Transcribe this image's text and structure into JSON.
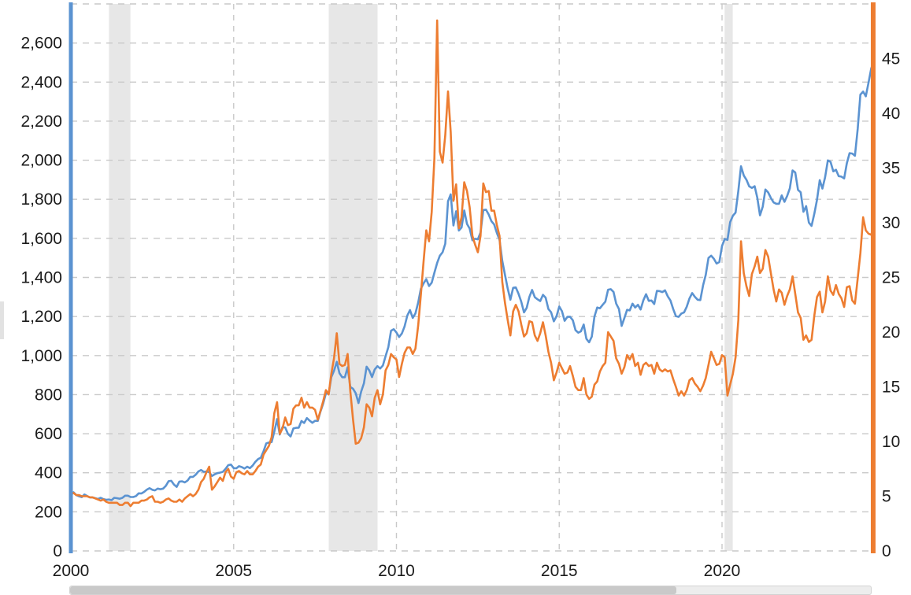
{
  "chart_data": {
    "type": "line",
    "title": "",
    "grid": {
      "on": true,
      "dashed": true,
      "color": "#c9c9c9",
      "left_axis_grid_step": 200
    },
    "legend": "none",
    "x_axis": {
      "min": 2000,
      "max": 2024.75,
      "tick_values": [
        2000,
        2005,
        2010,
        2015,
        2020
      ],
      "tick_labels": [
        "2000",
        "2005",
        "2010",
        "2015",
        "2020"
      ]
    },
    "left_axis": {
      "min": 0,
      "max": 2800,
      "color": "#5b93d1",
      "tick_values": [
        0,
        200,
        400,
        600,
        800,
        1000,
        1200,
        1400,
        1600,
        1800,
        2000,
        2200,
        2400,
        2600
      ],
      "tick_labels": [
        "0",
        "200",
        "400",
        "600",
        "800",
        "1,000",
        "1,200",
        "1,400",
        "1,600",
        "1,800",
        "2,000",
        "2,200",
        "2,400",
        "2,600"
      ]
    },
    "right_axis": {
      "min": 0,
      "max": 50,
      "color": "#ed7d31",
      "tick_values": [
        0,
        5,
        10,
        15,
        20,
        25,
        30,
        35,
        40,
        45
      ],
      "tick_labels": [
        "0",
        "5",
        "10",
        "15",
        "20",
        "25",
        "30",
        "35",
        "40",
        "45"
      ]
    },
    "recession_bands": [
      {
        "x_start": 2001.17,
        "x_end": 2001.83
      },
      {
        "x_start": 2007.92,
        "x_end": 2009.42
      },
      {
        "x_start": 2020.08,
        "x_end": 2020.33
      }
    ],
    "series": [
      {
        "name": "blue-series-left-axis",
        "axis": "left",
        "color": "#5b93d1",
        "start_year": 2000,
        "interval_months": 1,
        "values": [
          284,
          300,
          286,
          280,
          275,
          289,
          281,
          274,
          274,
          270,
          266,
          272,
          265,
          262,
          263,
          260,
          272,
          270,
          267,
          272,
          283,
          283,
          276,
          276,
          281,
          295,
          294,
          302,
          314,
          321,
          313,
          310,
          319,
          316,
          319,
          333,
          357,
          359,
          340,
          328,
          355,
          356,
          351,
          360,
          379,
          379,
          390,
          407,
          414,
          405,
          407,
          403,
          384,
          392,
          398,
          401,
          405,
          420,
          439,
          442,
          424,
          423,
          434,
          429,
          422,
          431,
          424,
          437,
          456,
          470,
          477,
          510,
          550,
          555,
          557,
          611,
          675,
          596,
          634,
          632,
          599,
          586,
          627,
          630,
          631,
          665,
          655,
          680,
          667,
          656,
          666,
          666,
          713,
          755,
          806,
          804,
          890,
          922,
          968,
          910,
          889,
          889,
          940,
          839,
          830,
          807,
          757,
          816,
          858,
          943,
          924,
          890,
          929,
          946,
          934,
          949,
          997,
          1043,
          1127,
          1135,
          1118,
          1095,
          1113,
          1149,
          1205,
          1233,
          1193,
          1216,
          1271,
          1342,
          1370,
          1391,
          1356,
          1373,
          1424,
          1474,
          1511,
          1529,
          1573,
          1790,
          1825,
          1666,
          1739,
          1640,
          1656,
          1743,
          1674,
          1650,
          1590,
          1598,
          1595,
          1630,
          1745,
          1747,
          1722,
          1688,
          1671,
          1628,
          1593,
          1485,
          1414,
          1343,
          1286,
          1347,
          1349,
          1316,
          1276,
          1221,
          1244,
          1300,
          1336,
          1299,
          1288,
          1279,
          1311,
          1296,
          1238,
          1222,
          1175,
          1201,
          1251,
          1227,
          1178,
          1198,
          1199,
          1181,
          1130,
          1117,
          1124,
          1159,
          1086,
          1068,
          1097,
          1200,
          1246,
          1242,
          1260,
          1276,
          1337,
          1340,
          1326,
          1266,
          1238,
          1152,
          1192,
          1234,
          1231,
          1266,
          1246,
          1260,
          1236,
          1283,
          1314,
          1280,
          1282,
          1264,
          1331,
          1330,
          1325,
          1334,
          1303,
          1282,
          1238,
          1202,
          1198,
          1215,
          1221,
          1250,
          1292,
          1320,
          1301,
          1286,
          1284,
          1359,
          1413,
          1500,
          1511,
          1495,
          1471,
          1479,
          1561,
          1597,
          1592,
          1683,
          1716,
          1732,
          1843,
          1969,
          1922,
          1900,
          1866,
          1858,
          1867,
          1808,
          1718,
          1762,
          1850,
          1835,
          1807,
          1784,
          1777,
          1777,
          1820,
          1787,
          1817,
          1856,
          1948,
          1937,
          1848,
          1836,
          1736,
          1765,
          1681,
          1664,
          1726,
          1797,
          1898,
          1855,
          1913,
          1999,
          1992,
          1943,
          1951,
          1918,
          1916,
          1907,
          1984,
          2036,
          2034,
          2023,
          2160,
          2336,
          2351,
          2327,
          2398,
          2470,
          2510
        ]
      },
      {
        "name": "orange-series-right-axis",
        "axis": "right",
        "color": "#ed7d31",
        "start_year": 2000,
        "interval_months": 1,
        "values": [
          5.2,
          5.3,
          5.1,
          5.1,
          5.0,
          5.0,
          5.0,
          4.9,
          4.9,
          4.8,
          4.7,
          4.6,
          4.7,
          4.5,
          4.4,
          4.4,
          4.4,
          4.4,
          4.2,
          4.2,
          4.4,
          4.4,
          4.1,
          4.4,
          4.4,
          4.4,
          4.6,
          4.6,
          4.7,
          4.9,
          5.0,
          4.5,
          4.5,
          4.4,
          4.5,
          4.7,
          4.8,
          4.6,
          4.5,
          4.5,
          4.7,
          4.5,
          4.8,
          5.0,
          5.2,
          5.0,
          5.2,
          5.6,
          6.3,
          6.6,
          7.2,
          7.7,
          5.6,
          5.9,
          6.3,
          6.7,
          6.4,
          7.2,
          7.5,
          6.8,
          6.6,
          7.2,
          7.3,
          7.1,
          7.0,
          7.3,
          7.0,
          7.0,
          7.3,
          7.7,
          7.9,
          8.8,
          9.2,
          9.6,
          10.4,
          12.6,
          13.6,
          10.7,
          11.2,
          12.2,
          11.5,
          11.6,
          13.0,
          13.3,
          13.3,
          14.0,
          13.1,
          13.6,
          13.1,
          13.1,
          12.9,
          12.0,
          12.8,
          13.7,
          14.7,
          14.3,
          16.2,
          17.6,
          19.9,
          17.1,
          16.9,
          17.0,
          18.0,
          14.6,
          12.0,
          9.8,
          9.9,
          10.3,
          11.3,
          13.4,
          13.1,
          12.3,
          14.0,
          14.7,
          13.4,
          14.3,
          16.5,
          17.0,
          18.0,
          17.7,
          17.5,
          15.9,
          17.1,
          18.1,
          18.6,
          18.6,
          18.0,
          18.5,
          20.6,
          23.4,
          26.5,
          29.3,
          28.3,
          31.0,
          35.9,
          48.5,
          36.5,
          35.5,
          38.0,
          42.0,
          38.3,
          32.0,
          33.5,
          29.5,
          30.5,
          33.7,
          32.9,
          31.4,
          28.8,
          28.0,
          27.3,
          28.8,
          33.6,
          32.8,
          32.9,
          31.1,
          31.1,
          29.8,
          28.8,
          24.6,
          22.7,
          21.1,
          19.7,
          21.9,
          22.5,
          21.9,
          20.7,
          19.6,
          19.9,
          21.0,
          20.9,
          19.7,
          19.2,
          19.9,
          20.9,
          19.7,
          18.2,
          17.2,
          15.6,
          16.3,
          17.2,
          16.7,
          16.2,
          16.3,
          16.9,
          16.0,
          15.0,
          14.7,
          14.7,
          15.8,
          14.3,
          13.9,
          14.1,
          15.2,
          15.5,
          16.4,
          16.9,
          17.2,
          20.0,
          19.6,
          19.2,
          17.6,
          17.1,
          16.2,
          16.8,
          17.9,
          17.5,
          18.0,
          16.9,
          17.2,
          16.1,
          17.0,
          17.2,
          16.9,
          17.0,
          16.2,
          17.2,
          16.6,
          16.4,
          16.6,
          16.4,
          16.5,
          15.7,
          15.0,
          14.2,
          14.6,
          14.2,
          14.7,
          15.6,
          15.8,
          15.3,
          15.0,
          14.6,
          15.1,
          15.8,
          17.0,
          18.2,
          17.6,
          17.0,
          17.1,
          17.9,
          17.7,
          14.2,
          15.2,
          16.2,
          17.7,
          21.1,
          28.3,
          25.4,
          24.2,
          23.3,
          25.3,
          26.0,
          26.9,
          25.4,
          25.8,
          27.5,
          26.9,
          25.4,
          23.9,
          22.8,
          23.9,
          23.6,
          22.5,
          23.3,
          23.9,
          25.1,
          23.5,
          21.8,
          21.3,
          19.3,
          19.7,
          19.1,
          19.3,
          21.5,
          23.2,
          23.7,
          21.8,
          22.8,
          25.1,
          23.8,
          23.4,
          24.3,
          23.5,
          23.1,
          22.3,
          24.1,
          24.2,
          22.9,
          22.6,
          24.9,
          27.2,
          30.5,
          29.3,
          29.0,
          28.9,
          29.8
        ]
      }
    ],
    "band_color": "#e7e7e7"
  },
  "scrollbar": {
    "visible": true,
    "thumb_color": "#c9c9c9",
    "track_color": "#ededed"
  }
}
